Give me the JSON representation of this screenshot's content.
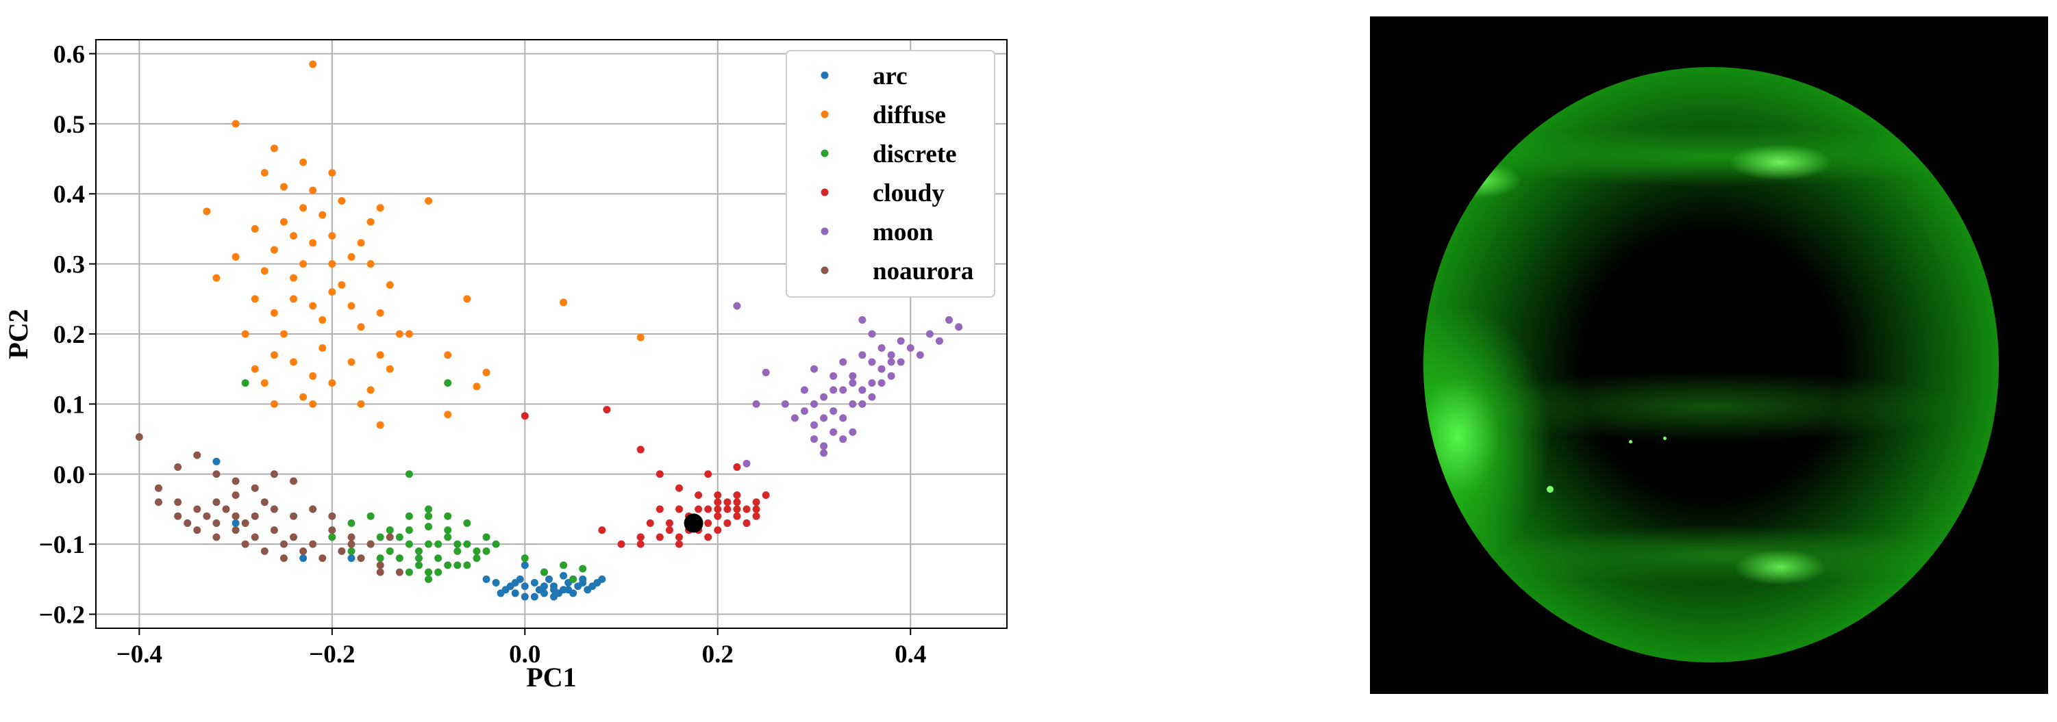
{
  "chart_data": {
    "type": "scatter",
    "xlabel": "PC1",
    "ylabel": "PC2",
    "xlim": [
      -0.445,
      0.5
    ],
    "ylim": [
      -0.22,
      0.62
    ],
    "xticks": [
      -0.4,
      -0.2,
      0.0,
      0.2,
      0.4
    ],
    "xtick_labels": [
      "−0.4",
      "−0.2",
      "0.0",
      "0.2",
      "0.4"
    ],
    "yticks": [
      -0.2,
      -0.1,
      0.0,
      0.1,
      0.2,
      0.3,
      0.4,
      0.5,
      0.6
    ],
    "ytick_labels": [
      "−0.2",
      "−0.1",
      "0.0",
      "0.1",
      "0.2",
      "0.3",
      "0.4",
      "0.5",
      "0.6"
    ],
    "grid": true,
    "legend_position": "top-right",
    "series": [
      {
        "name": "arc",
        "color": "#1f77b4",
        "points": [
          [
            0.0,
            -0.16
          ],
          [
            0.02,
            -0.17
          ],
          [
            0.04,
            -0.165
          ],
          [
            0.06,
            -0.155
          ],
          [
            0.03,
            -0.16
          ],
          [
            -0.01,
            -0.17
          ],
          [
            0.01,
            -0.155
          ],
          [
            0.05,
            -0.17
          ],
          [
            0.07,
            -0.16
          ],
          [
            0.08,
            -0.15
          ],
          [
            -0.02,
            -0.165
          ],
          [
            -0.03,
            -0.155
          ],
          [
            0.0,
            -0.175
          ],
          [
            0.025,
            -0.15
          ],
          [
            0.045,
            -0.155
          ],
          [
            0.015,
            -0.165
          ],
          [
            0.035,
            -0.17
          ],
          [
            0.055,
            -0.16
          ],
          [
            -0.015,
            -0.16
          ],
          [
            0.065,
            -0.165
          ],
          [
            0.075,
            -0.155
          ],
          [
            -0.005,
            -0.15
          ],
          [
            0.01,
            -0.175
          ],
          [
            0.03,
            -0.175
          ],
          [
            0.05,
            -0.15
          ],
          [
            -0.025,
            -0.17
          ],
          [
            0.04,
            -0.145
          ],
          [
            0.0,
            -0.13
          ],
          [
            0.02,
            -0.14
          ],
          [
            -0.04,
            -0.15
          ],
          [
            0.06,
            -0.15
          ],
          [
            0.02,
            -0.16
          ],
          [
            0.03,
            -0.165
          ],
          [
            0.045,
            -0.165
          ],
          [
            -0.01,
            -0.155
          ],
          [
            -0.32,
            0.018
          ],
          [
            -0.3,
            -0.07
          ],
          [
            -0.23,
            -0.12
          ],
          [
            -0.18,
            -0.12
          ],
          [
            0.12,
            -0.09
          ]
        ]
      },
      {
        "name": "diffuse",
        "color": "#ff7f0e",
        "points": [
          [
            -0.22,
            0.585
          ],
          [
            -0.3,
            0.5
          ],
          [
            -0.26,
            0.465
          ],
          [
            -0.23,
            0.445
          ],
          [
            -0.27,
            0.43
          ],
          [
            -0.2,
            0.43
          ],
          [
            -0.25,
            0.41
          ],
          [
            -0.22,
            0.405
          ],
          [
            -0.19,
            0.39
          ],
          [
            -0.23,
            0.38
          ],
          [
            -0.33,
            0.375
          ],
          [
            -0.21,
            0.37
          ],
          [
            -0.15,
            0.38
          ],
          [
            -0.1,
            0.39
          ],
          [
            -0.25,
            0.36
          ],
          [
            -0.16,
            0.36
          ],
          [
            -0.28,
            0.35
          ],
          [
            -0.24,
            0.34
          ],
          [
            -0.2,
            0.34
          ],
          [
            -0.17,
            0.33
          ],
          [
            -0.22,
            0.33
          ],
          [
            -0.26,
            0.32
          ],
          [
            -0.18,
            0.31
          ],
          [
            -0.3,
            0.31
          ],
          [
            -0.2,
            0.3
          ],
          [
            -0.16,
            0.3
          ],
          [
            -0.23,
            0.3
          ],
          [
            -0.27,
            0.29
          ],
          [
            -0.32,
            0.28
          ],
          [
            -0.24,
            0.28
          ],
          [
            -0.19,
            0.27
          ],
          [
            -0.14,
            0.27
          ],
          [
            -0.2,
            0.26
          ],
          [
            -0.24,
            0.25
          ],
          [
            -0.28,
            0.25
          ],
          [
            -0.22,
            0.24
          ],
          [
            -0.18,
            0.24
          ],
          [
            -0.26,
            0.23
          ],
          [
            -0.15,
            0.23
          ],
          [
            -0.21,
            0.22
          ],
          [
            -0.17,
            0.21
          ],
          [
            -0.25,
            0.2
          ],
          [
            -0.29,
            0.2
          ],
          [
            -0.13,
            0.2
          ],
          [
            -0.21,
            0.18
          ],
          [
            -0.26,
            0.17
          ],
          [
            -0.15,
            0.17
          ],
          [
            -0.24,
            0.16
          ],
          [
            -0.18,
            0.16
          ],
          [
            -0.28,
            0.15
          ],
          [
            -0.14,
            0.15
          ],
          [
            -0.22,
            0.14
          ],
          [
            -0.27,
            0.13
          ],
          [
            -0.2,
            0.13
          ],
          [
            -0.16,
            0.12
          ],
          [
            -0.23,
            0.11
          ],
          [
            -0.26,
            0.1
          ],
          [
            -0.22,
            0.1
          ],
          [
            -0.17,
            0.1
          ],
          [
            -0.15,
            0.07
          ],
          [
            -0.12,
            0.2
          ],
          [
            -0.08,
            0.17
          ],
          [
            -0.06,
            0.25
          ],
          [
            0.04,
            0.245
          ],
          [
            -0.04,
            0.145
          ],
          [
            -0.05,
            0.125
          ],
          [
            -0.08,
            0.085
          ],
          [
            0.12,
            0.195
          ]
        ]
      },
      {
        "name": "discrete",
        "color": "#2ca02c",
        "points": [
          [
            -0.29,
            0.13
          ],
          [
            -0.12,
            0.0
          ],
          [
            -0.08,
            0.13
          ],
          [
            -0.16,
            -0.06
          ],
          [
            -0.14,
            -0.08
          ],
          [
            -0.12,
            -0.08
          ],
          [
            -0.1,
            -0.06
          ],
          [
            -0.08,
            -0.06
          ],
          [
            -0.06,
            -0.07
          ],
          [
            -0.18,
            -0.07
          ],
          [
            -0.16,
            -0.1
          ],
          [
            -0.14,
            -0.11
          ],
          [
            -0.12,
            -0.1
          ],
          [
            -0.1,
            -0.1
          ],
          [
            -0.08,
            -0.09
          ],
          [
            -0.06,
            -0.1
          ],
          [
            -0.04,
            -0.09
          ],
          [
            -0.2,
            -0.09
          ],
          [
            -0.18,
            -0.11
          ],
          [
            -0.15,
            -0.12
          ],
          [
            -0.13,
            -0.12
          ],
          [
            -0.11,
            -0.12
          ],
          [
            -0.09,
            -0.12
          ],
          [
            -0.07,
            -0.11
          ],
          [
            -0.05,
            -0.11
          ],
          [
            -0.03,
            -0.1
          ],
          [
            -0.12,
            -0.14
          ],
          [
            -0.1,
            -0.14
          ],
          [
            -0.08,
            -0.13
          ],
          [
            -0.06,
            -0.13
          ],
          [
            -0.1,
            -0.15
          ],
          [
            -0.1,
            -0.075
          ],
          [
            -0.09,
            -0.1
          ],
          [
            -0.11,
            -0.11
          ],
          [
            -0.13,
            -0.09
          ],
          [
            -0.07,
            -0.1
          ],
          [
            -0.15,
            -0.09
          ],
          [
            -0.05,
            -0.12
          ],
          [
            -0.09,
            -0.14
          ],
          [
            -0.11,
            -0.13
          ],
          [
            -0.07,
            -0.13
          ],
          [
            -0.1,
            -0.05
          ],
          [
            -0.08,
            -0.08
          ],
          [
            -0.04,
            -0.11
          ],
          [
            0.0,
            -0.12
          ],
          [
            0.04,
            -0.13
          ],
          [
            0.05,
            -0.15
          ],
          [
            0.06,
            -0.135
          ],
          [
            0.02,
            -0.14
          ],
          [
            -0.12,
            -0.06
          ]
        ]
      },
      {
        "name": "cloudy",
        "color": "#d62728",
        "points": [
          [
            0.0,
            0.083
          ],
          [
            0.085,
            0.092
          ],
          [
            0.12,
            0.035
          ],
          [
            0.14,
            0.0
          ],
          [
            0.19,
            0.0
          ],
          [
            0.22,
            0.01
          ],
          [
            0.16,
            -0.02
          ],
          [
            0.18,
            -0.03
          ],
          [
            0.2,
            -0.03
          ],
          [
            0.22,
            -0.03
          ],
          [
            0.24,
            -0.04
          ],
          [
            0.25,
            -0.03
          ],
          [
            0.14,
            -0.05
          ],
          [
            0.16,
            -0.05
          ],
          [
            0.18,
            -0.05
          ],
          [
            0.2,
            -0.05
          ],
          [
            0.22,
            -0.05
          ],
          [
            0.24,
            -0.06
          ],
          [
            0.13,
            -0.07
          ],
          [
            0.15,
            -0.07
          ],
          [
            0.17,
            -0.06
          ],
          [
            0.19,
            -0.07
          ],
          [
            0.21,
            -0.07
          ],
          [
            0.23,
            -0.07
          ],
          [
            0.12,
            -0.09
          ],
          [
            0.14,
            -0.09
          ],
          [
            0.16,
            -0.09
          ],
          [
            0.18,
            -0.08
          ],
          [
            0.2,
            -0.08
          ],
          [
            0.22,
            -0.06
          ],
          [
            0.1,
            -0.1
          ],
          [
            0.12,
            -0.1
          ],
          [
            0.16,
            -0.1
          ],
          [
            0.19,
            -0.09
          ],
          [
            0.08,
            -0.08
          ],
          [
            0.2,
            -0.06
          ],
          [
            0.21,
            -0.05
          ],
          [
            0.23,
            -0.05
          ],
          [
            0.24,
            -0.05
          ],
          [
            0.21,
            -0.04
          ],
          [
            0.22,
            -0.04
          ],
          [
            0.2,
            -0.04
          ],
          [
            0.19,
            -0.05
          ],
          [
            0.17,
            -0.08
          ],
          [
            0.15,
            -0.08
          ]
        ]
      },
      {
        "name": "moon",
        "color": "#9467bd",
        "points": [
          [
            0.22,
            0.24
          ],
          [
            0.23,
            0.015
          ],
          [
            0.24,
            0.1
          ],
          [
            0.25,
            0.145
          ],
          [
            0.28,
            0.08
          ],
          [
            0.29,
            0.12
          ],
          [
            0.3,
            0.15
          ],
          [
            0.3,
            0.07
          ],
          [
            0.31,
            0.11
          ],
          [
            0.31,
            0.04
          ],
          [
            0.32,
            0.09
          ],
          [
            0.32,
            0.14
          ],
          [
            0.32,
            0.06
          ],
          [
            0.33,
            0.12
          ],
          [
            0.33,
            0.16
          ],
          [
            0.33,
            0.08
          ],
          [
            0.34,
            0.1
          ],
          [
            0.34,
            0.14
          ],
          [
            0.34,
            0.06
          ],
          [
            0.35,
            0.22
          ],
          [
            0.35,
            0.12
          ],
          [
            0.35,
            0.17
          ],
          [
            0.36,
            0.2
          ],
          [
            0.36,
            0.13
          ],
          [
            0.36,
            0.16
          ],
          [
            0.37,
            0.15
          ],
          [
            0.37,
            0.18
          ],
          [
            0.38,
            0.17
          ],
          [
            0.38,
            0.14
          ],
          [
            0.39,
            0.19
          ],
          [
            0.39,
            0.16
          ],
          [
            0.4,
            0.18
          ],
          [
            0.41,
            0.17
          ],
          [
            0.42,
            0.2
          ],
          [
            0.43,
            0.19
          ],
          [
            0.44,
            0.22
          ],
          [
            0.45,
            0.21
          ],
          [
            0.3,
            0.05
          ],
          [
            0.31,
            0.03
          ],
          [
            0.33,
            0.05
          ],
          [
            0.34,
            0.13
          ],
          [
            0.35,
            0.1
          ],
          [
            0.36,
            0.11
          ],
          [
            0.3,
            0.1
          ],
          [
            0.29,
            0.09
          ],
          [
            0.27,
            0.1
          ],
          [
            0.31,
            0.08
          ],
          [
            0.32,
            0.12
          ],
          [
            0.37,
            0.13
          ],
          [
            0.38,
            0.16
          ]
        ]
      },
      {
        "name": "noaurora",
        "color": "#8c564b",
        "points": [
          [
            -0.4,
            0.053
          ],
          [
            -0.34,
            0.027
          ],
          [
            -0.36,
            0.01
          ],
          [
            -0.32,
            0.0
          ],
          [
            -0.3,
            -0.01
          ],
          [
            -0.28,
            -0.02
          ],
          [
            -0.26,
            0.0
          ],
          [
            -0.24,
            -0.01
          ],
          [
            -0.38,
            -0.02
          ],
          [
            -0.36,
            -0.04
          ],
          [
            -0.34,
            -0.05
          ],
          [
            -0.32,
            -0.04
          ],
          [
            -0.3,
            -0.03
          ],
          [
            -0.28,
            -0.06
          ],
          [
            -0.26,
            -0.05
          ],
          [
            -0.24,
            -0.06
          ],
          [
            -0.22,
            -0.05
          ],
          [
            -0.2,
            -0.06
          ],
          [
            -0.38,
            -0.04
          ],
          [
            -0.36,
            -0.06
          ],
          [
            -0.34,
            -0.08
          ],
          [
            -0.32,
            -0.07
          ],
          [
            -0.3,
            -0.08
          ],
          [
            -0.28,
            -0.09
          ],
          [
            -0.26,
            -0.08
          ],
          [
            -0.24,
            -0.09
          ],
          [
            -0.22,
            -0.1
          ],
          [
            -0.2,
            -0.08
          ],
          [
            -0.18,
            -0.09
          ],
          [
            -0.16,
            -0.1
          ],
          [
            -0.14,
            -0.09
          ],
          [
            -0.32,
            -0.09
          ],
          [
            -0.29,
            -0.1
          ],
          [
            -0.27,
            -0.11
          ],
          [
            -0.25,
            -0.1
          ],
          [
            -0.23,
            -0.11
          ],
          [
            -0.21,
            -0.12
          ],
          [
            -0.19,
            -0.11
          ],
          [
            -0.17,
            -0.12
          ],
          [
            -0.15,
            -0.13
          ],
          [
            -0.15,
            -0.14
          ],
          [
            -0.13,
            -0.14
          ],
          [
            -0.25,
            -0.12
          ],
          [
            -0.29,
            -0.07
          ],
          [
            -0.27,
            -0.04
          ],
          [
            -0.33,
            -0.06
          ],
          [
            -0.35,
            -0.07
          ],
          [
            -0.31,
            -0.05
          ],
          [
            -0.18,
            -0.1
          ],
          [
            -0.3,
            -0.06
          ]
        ]
      }
    ],
    "highlight_point": {
      "x": 0.175,
      "y": -0.07,
      "color": "#000000"
    }
  },
  "image_panel": {
    "colors": {
      "background": "#000000",
      "aurora": "#33cc22"
    }
  }
}
